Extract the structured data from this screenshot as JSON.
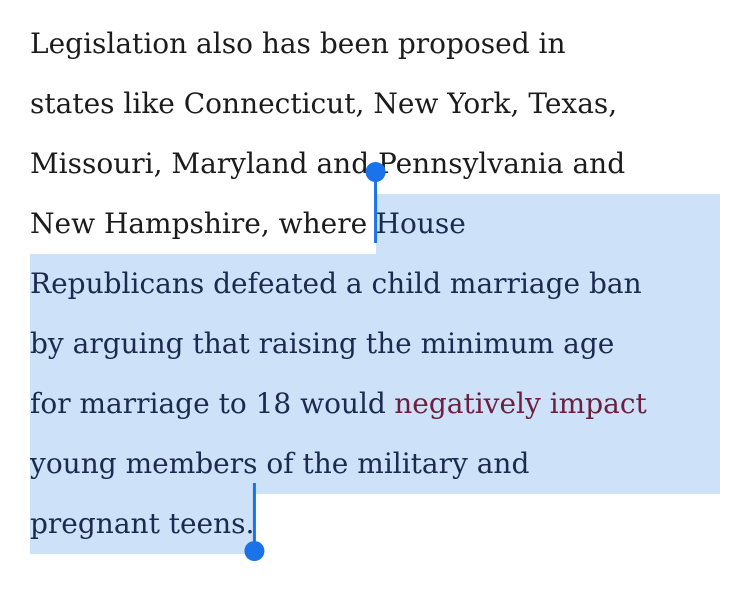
{
  "paragraph": {
    "lines": [
      [
        "Legislation also has been proposed in"
      ],
      [
        "states like Connecticut, New York, Texas,"
      ],
      [
        "Missouri, Maryland and Pennsylvania and"
      ],
      [
        "New Hampshire, where",
        "House"
      ],
      [
        "Republicans defeated a child marriage ban"
      ],
      [
        "by arguing that raising the minimum age"
      ],
      [
        "for marriage to 18 would",
        "negatively impact"
      ],
      [
        "young members of the military and"
      ],
      [
        "pregnant teens."
      ]
    ]
  }
}
